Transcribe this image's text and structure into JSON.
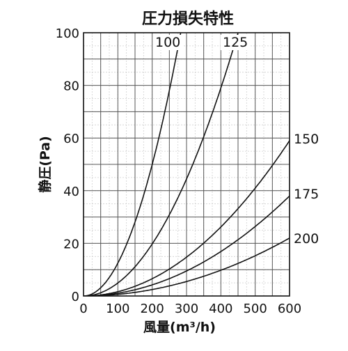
{
  "chart_data": {
    "type": "line",
    "title": "圧力損失特性",
    "xlabel": "風量(m³/h)",
    "ylabel": "静圧(Pa)",
    "xlim": [
      0,
      600
    ],
    "ylim": [
      0,
      100
    ],
    "x_ticks": [
      "0",
      "100",
      "200",
      "300",
      "400",
      "500",
      "600"
    ],
    "y_ticks": [
      "0",
      "20",
      "40",
      "60",
      "80",
      "100"
    ],
    "x_tick_values": [
      0,
      100,
      200,
      300,
      400,
      500,
      600
    ],
    "y_tick_values": [
      0,
      20,
      40,
      60,
      80,
      100
    ],
    "grid": true,
    "series": [
      {
        "name": "100",
        "x": [
          0,
          50,
          100,
          150,
          200,
          250,
          283
        ],
        "y": [
          0,
          3.1,
          12.5,
          28.1,
          50,
          78.1,
          100
        ]
      },
      {
        "name": "125",
        "x": [
          0,
          100,
          200,
          300,
          400,
          450
        ],
        "y": [
          0,
          4.9,
          19.8,
          44.4,
          79,
          100
        ]
      },
      {
        "name": "150",
        "x": [
          0,
          100,
          200,
          300,
          400,
          500,
          600
        ],
        "y": [
          0,
          1.6,
          6.6,
          14.8,
          26.2,
          41,
          59
        ]
      },
      {
        "name": "175",
        "x": [
          0,
          100,
          200,
          300,
          400,
          500,
          600
        ],
        "y": [
          0,
          1.05,
          4.2,
          9.5,
          16.9,
          26.4,
          38
        ]
      },
      {
        "name": "200",
        "x": [
          0,
          100,
          200,
          300,
          400,
          500,
          600
        ],
        "y": [
          0,
          0.6,
          2.4,
          5.5,
          9.8,
          15.3,
          22
        ]
      }
    ]
  }
}
